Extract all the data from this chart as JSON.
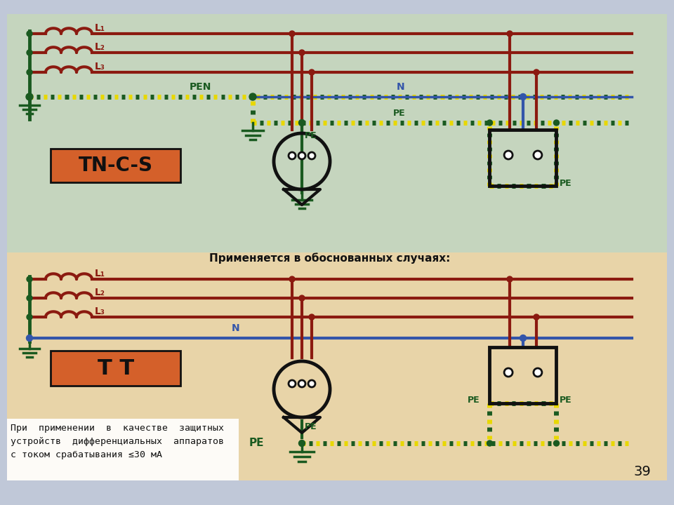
{
  "top_bg": "#c5d5be",
  "bot_bg": "#e8d4a8",
  "dark_red": "#8b1a10",
  "dark_green": "#1a5a20",
  "blue": "#3355aa",
  "orange_label": "#d4602a",
  "yellow_stripe": "#e8d800",
  "black": "#111111",
  "white": "#ffffff",
  "gray_border": "#aaaaaa",
  "label_tncs": "TN-C-S",
  "label_tt": "T T",
  "note_text": "При  применении  в  качестве  защитных\nустройств  дифференциальных  аппаратов\nс током срабатывания ≤30 мА",
  "applies_text": "Применяется в обоснованных случаях:",
  "page_number": "39",
  "slide_bg": "#c0c8d8"
}
